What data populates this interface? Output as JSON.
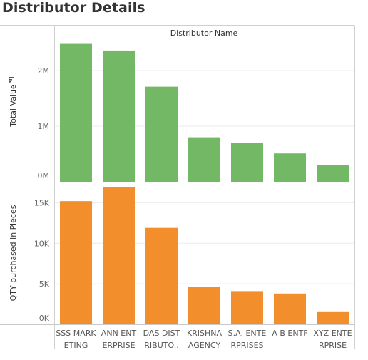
{
  "page_title": "Distributor Details",
  "sort_icon": "sort-descending-icon",
  "chart_data": {
    "type": "bar",
    "column_header": "Distributor Name",
    "categories": [
      [
        "SSS MARK",
        "ETING"
      ],
      [
        "ANN ENT",
        "ERPRISE"
      ],
      [
        "DAS DIST",
        "RIBUTO.."
      ],
      [
        "KRISHNA",
        "AGENCY"
      ],
      [
        "S.A. ENTE",
        "RPRISES"
      ],
      [
        "A B ENTF",
        ""
      ],
      [
        "XYZ ENTE",
        "RPRISE"
      ]
    ],
    "panels": [
      {
        "ylabel": "Total Value",
        "color": "#73B865",
        "ylim": [
          0,
          2500000
        ],
        "ticks": [
          {
            "value": 0,
            "label": "0M"
          },
          {
            "value": 1000000,
            "label": "1M"
          },
          {
            "value": 2000000,
            "label": "2M"
          }
        ],
        "values": [
          2480000,
          2360000,
          1710000,
          800000,
          700000,
          510000,
          300000
        ]
      },
      {
        "ylabel": "QTY purchased in Pieces",
        "color": "#F28E2B",
        "ylim": [
          0,
          17500
        ],
        "ticks": [
          {
            "value": 0,
            "label": "0K"
          },
          {
            "value": 5000,
            "label": "5K"
          },
          {
            "value": 10000,
            "label": "10K"
          },
          {
            "value": 15000,
            "label": "15K"
          }
        ],
        "values": [
          15200,
          16900,
          11900,
          4600,
          4100,
          3800,
          1600
        ]
      }
    ],
    "grid": true,
    "legend": "none"
  }
}
